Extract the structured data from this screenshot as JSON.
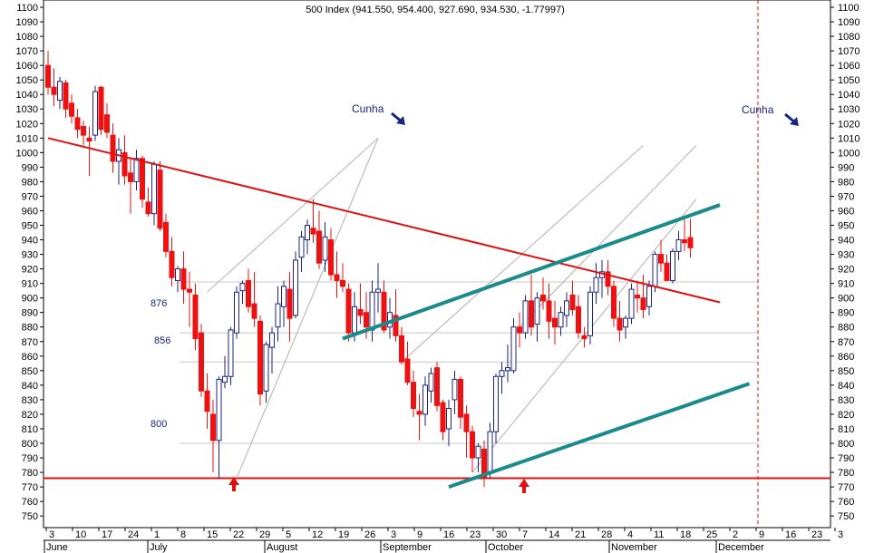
{
  "title": "500 Index (941.550, 954.400, 927.690, 934.530, -1.77997)",
  "colors": {
    "background": "#ffffff",
    "up_candle": "#1a237e",
    "down_candle": "#ee1111",
    "resistance_line": "#e01010",
    "channel_line": "#1a8a8a",
    "wedge_line": "#b0b0b0",
    "level_line": "#c8c8c8",
    "grid_frame": "#000000",
    "annotation_text": "#1a237e",
    "arrow_red": "#e01010"
  },
  "annotations": {
    "level_876": "876",
    "level_856": "856",
    "level_800": "800",
    "wedge_1": "Cunha",
    "wedge_2": "Cunha"
  },
  "chart_data": {
    "type": "candlestick",
    "title": "500 Index (941.550, 954.400, 927.690, 934.530, -1.77997)",
    "ylim": [
      742,
      1105
    ],
    "y_ticks": [
      750,
      760,
      770,
      780,
      790,
      800,
      810,
      820,
      830,
      840,
      850,
      860,
      870,
      880,
      890,
      900,
      910,
      920,
      930,
      940,
      950,
      960,
      970,
      980,
      990,
      1000,
      1010,
      1020,
      1030,
      1040,
      1050,
      1060,
      1070,
      1080,
      1090,
      1100
    ],
    "x_day_ticks": [
      "3",
      "10",
      "17",
      "24",
      "1",
      "8",
      "15",
      "22",
      "29",
      "5",
      "12",
      "19",
      "26",
      "3",
      "9",
      "16",
      "23",
      "30",
      "7",
      "14",
      "21",
      "28",
      "4",
      "11",
      "18",
      "25",
      "2",
      "9",
      "16",
      "23",
      "3"
    ],
    "x_months": [
      "June",
      "July",
      "August",
      "September",
      "October",
      "November",
      "December"
    ],
    "horizontal_levels": [
      {
        "value": 876,
        "label": "876"
      },
      {
        "value": 856,
        "label": "856"
      },
      {
        "value": 800,
        "label": "800"
      },
      {
        "value": 911
      },
      {
        "value": 776
      }
    ],
    "candles": [
      [
        1060,
        1070,
        1040,
        1045
      ],
      [
        1045,
        1058,
        1032,
        1040
      ],
      [
        1036,
        1052,
        1030,
        1049
      ],
      [
        1048,
        1050,
        1024,
        1030
      ],
      [
        1034,
        1040,
        1020,
        1025
      ],
      [
        1024,
        1030,
        1010,
        1016
      ],
      [
        1018,
        1022,
        1005,
        1012
      ],
      [
        1010,
        1018,
        984,
        1008
      ],
      [
        1012,
        1046,
        1008,
        1042
      ],
      [
        1045,
        1046,
        1012,
        1016
      ],
      [
        1026,
        1034,
        1010,
        1014
      ],
      [
        1012,
        1020,
        986,
        994
      ],
      [
        994,
        1010,
        978,
        1002
      ],
      [
        1000,
        1012,
        978,
        984
      ],
      [
        986,
        996,
        958,
        980
      ],
      [
        980,
        1002,
        974,
        996
      ],
      [
        996,
        998,
        962,
        968
      ],
      [
        966,
        976,
        956,
        958
      ],
      [
        958,
        994,
        950,
        992
      ],
      [
        988,
        994,
        946,
        948
      ],
      [
        952,
        958,
        928,
        932
      ],
      [
        932,
        942,
        908,
        914
      ],
      [
        912,
        922,
        904,
        920
      ],
      [
        920,
        932,
        896,
        906
      ],
      [
        906,
        918,
        880,
        904
      ],
      [
        902,
        910,
        864,
        872
      ],
      [
        876,
        882,
        832,
        836
      ],
      [
        836,
        848,
        810,
        822
      ],
      [
        820,
        830,
        780,
        802
      ],
      [
        802,
        846,
        776,
        844
      ],
      [
        842,
        860,
        838,
        846
      ],
      [
        846,
        880,
        840,
        878
      ],
      [
        876,
        908,
        872,
        904
      ],
      [
        905,
        912,
        896,
        910
      ],
      [
        912,
        920,
        890,
        894
      ],
      [
        896,
        918,
        880,
        886
      ],
      [
        884,
        888,
        826,
        834
      ],
      [
        836,
        870,
        828,
        868
      ],
      [
        866,
        880,
        848,
        876
      ],
      [
        880,
        908,
        870,
        896
      ],
      [
        894,
        912,
        880,
        908
      ],
      [
        906,
        918,
        870,
        886
      ],
      [
        888,
        932,
        886,
        926
      ],
      [
        928,
        946,
        918,
        942
      ],
      [
        940,
        954,
        930,
        950
      ],
      [
        948,
        968,
        938,
        944
      ],
      [
        946,
        960,
        920,
        924
      ],
      [
        926,
        952,
        918,
        942
      ],
      [
        940,
        948,
        912,
        916
      ],
      [
        916,
        932,
        900,
        912
      ],
      [
        912,
        924,
        904,
        908
      ],
      [
        906,
        910,
        870,
        876
      ],
      [
        876,
        904,
        870,
        894
      ],
      [
        892,
        910,
        882,
        888
      ],
      [
        890,
        904,
        872,
        880
      ],
      [
        878,
        912,
        870,
        904
      ],
      [
        904,
        924,
        890,
        906
      ],
      [
        904,
        912,
        876,
        878
      ],
      [
        880,
        900,
        872,
        890
      ],
      [
        888,
        906,
        870,
        874
      ],
      [
        874,
        880,
        854,
        856
      ],
      [
        858,
        870,
        840,
        842
      ],
      [
        842,
        850,
        818,
        824
      ],
      [
        822,
        834,
        802,
        820
      ],
      [
        820,
        846,
        812,
        840
      ],
      [
        836,
        852,
        828,
        848
      ],
      [
        852,
        856,
        822,
        826
      ],
      [
        828,
        830,
        802,
        808
      ],
      [
        810,
        830,
        798,
        824
      ],
      [
        830,
        850,
        820,
        844
      ],
      [
        844,
        846,
        810,
        818
      ],
      [
        820,
        826,
        790,
        808
      ],
      [
        808,
        812,
        780,
        790
      ],
      [
        790,
        800,
        780,
        798
      ],
      [
        796,
        802,
        770,
        776
      ],
      [
        780,
        814,
        776,
        808
      ],
      [
        808,
        848,
        800,
        846
      ],
      [
        846,
        856,
        834,
        850
      ],
      [
        850,
        868,
        842,
        852
      ],
      [
        850,
        886,
        848,
        880
      ],
      [
        880,
        890,
        866,
        876
      ],
      [
        876,
        902,
        872,
        898
      ],
      [
        898,
        916,
        874,
        880
      ],
      [
        882,
        904,
        870,
        900
      ],
      [
        902,
        914,
        892,
        898
      ],
      [
        898,
        910,
        872,
        884
      ],
      [
        886,
        898,
        868,
        880
      ],
      [
        880,
        894,
        874,
        890
      ],
      [
        888,
        904,
        880,
        898
      ],
      [
        902,
        912,
        888,
        892
      ],
      [
        894,
        902,
        872,
        876
      ],
      [
        874,
        880,
        866,
        872
      ],
      [
        874,
        908,
        868,
        904
      ],
      [
        904,
        924,
        896,
        914
      ],
      [
        914,
        926,
        900,
        918
      ],
      [
        918,
        926,
        902,
        908
      ],
      [
        908,
        912,
        880,
        886
      ],
      [
        886,
        898,
        870,
        878
      ],
      [
        880,
        888,
        872,
        886
      ],
      [
        886,
        910,
        882,
        906
      ],
      [
        902,
        912,
        890,
        900
      ],
      [
        900,
        916,
        886,
        892
      ],
      [
        894,
        912,
        888,
        908
      ],
      [
        908,
        932,
        904,
        930
      ],
      [
        930,
        940,
        918,
        924
      ],
      [
        924,
        930,
        912,
        912
      ],
      [
        912,
        934,
        910,
        932
      ],
      [
        932,
        946,
        926,
        940
      ],
      [
        940,
        954,
        932,
        938
      ],
      [
        941.55,
        954.4,
        927.69,
        934.53
      ]
    ],
    "trend_lines": [
      {
        "name": "resistance",
        "from": [
          0,
          1010
        ],
        "to": [
          114,
          897
        ]
      },
      {
        "name": "channel-upper",
        "from": [
          50,
          872
        ],
        "to": [
          114,
          964
        ]
      },
      {
        "name": "channel-lower",
        "from": [
          68,
          770
        ],
        "to": [
          119,
          841
        ]
      }
    ]
  }
}
